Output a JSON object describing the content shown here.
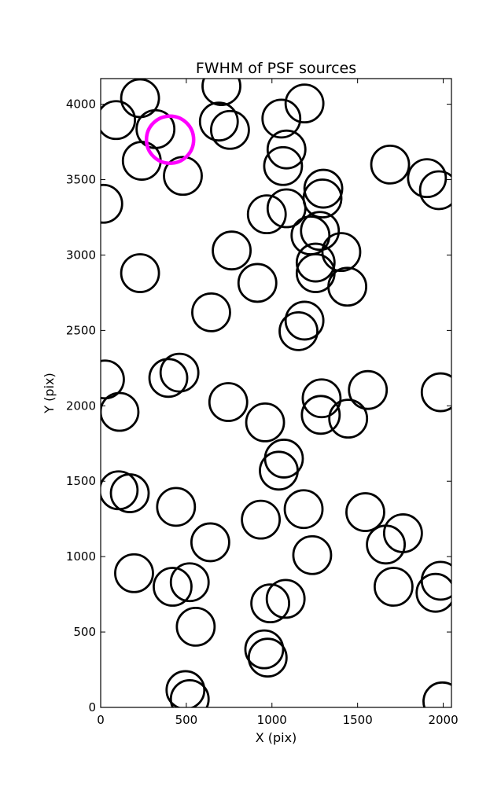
{
  "chart_data": {
    "type": "scatter",
    "title": "FWHM of PSF sources",
    "xlabel": "X (pix)",
    "ylabel": "Y (pix)",
    "xlim": [
      0,
      2048
    ],
    "ylim": [
      0,
      4170
    ],
    "xticks": [
      0,
      500,
      1000,
      1500,
      2000
    ],
    "yticks": [
      0,
      500,
      1000,
      1500,
      2000,
      2500,
      3000,
      3500,
      4000
    ],
    "grid": false,
    "legend": "none",
    "marker": "open circle",
    "marker_color": "#000000",
    "highlight_color": "#ff00ff",
    "highlight": {
      "x": 405,
      "y": 3765
    },
    "points": [
      {
        "x": 230,
        "y": 4040
      },
      {
        "x": 90,
        "y": 3895
      },
      {
        "x": 320,
        "y": 3835
      },
      {
        "x": 240,
        "y": 3625
      },
      {
        "x": 480,
        "y": 3525
      },
      {
        "x": 15,
        "y": 3340
      },
      {
        "x": 705,
        "y": 4120
      },
      {
        "x": 690,
        "y": 3885
      },
      {
        "x": 755,
        "y": 3830
      },
      {
        "x": 1055,
        "y": 3905
      },
      {
        "x": 1190,
        "y": 4005
      },
      {
        "x": 1085,
        "y": 3700
      },
      {
        "x": 1065,
        "y": 3590
      },
      {
        "x": 1300,
        "y": 3440
      },
      {
        "x": 1295,
        "y": 3375
      },
      {
        "x": 1690,
        "y": 3600
      },
      {
        "x": 1905,
        "y": 3510
      },
      {
        "x": 1975,
        "y": 3430
      },
      {
        "x": 970,
        "y": 3270
      },
      {
        "x": 1085,
        "y": 3310
      },
      {
        "x": 1225,
        "y": 3130
      },
      {
        "x": 1280,
        "y": 3160
      },
      {
        "x": 1255,
        "y": 2950
      },
      {
        "x": 1255,
        "y": 2880
      },
      {
        "x": 1405,
        "y": 3020
      },
      {
        "x": 1440,
        "y": 2790
      },
      {
        "x": 765,
        "y": 3030
      },
      {
        "x": 230,
        "y": 2880
      },
      {
        "x": 915,
        "y": 2815
      },
      {
        "x": 645,
        "y": 2620
      },
      {
        "x": 1190,
        "y": 2565
      },
      {
        "x": 1155,
        "y": 2495
      },
      {
        "x": 25,
        "y": 2175
      },
      {
        "x": 395,
        "y": 2185
      },
      {
        "x": 460,
        "y": 2220
      },
      {
        "x": 110,
        "y": 1960
      },
      {
        "x": 745,
        "y": 2025
      },
      {
        "x": 960,
        "y": 1890
      },
      {
        "x": 1290,
        "y": 2050
      },
      {
        "x": 1285,
        "y": 1940
      },
      {
        "x": 1445,
        "y": 1915
      },
      {
        "x": 1560,
        "y": 2105
      },
      {
        "x": 1985,
        "y": 2090
      },
      {
        "x": 1070,
        "y": 1650
      },
      {
        "x": 1040,
        "y": 1570
      },
      {
        "x": 105,
        "y": 1440
      },
      {
        "x": 170,
        "y": 1420
      },
      {
        "x": 440,
        "y": 1330
      },
      {
        "x": 640,
        "y": 1095
      },
      {
        "x": 935,
        "y": 1245
      },
      {
        "x": 1185,
        "y": 1315
      },
      {
        "x": 1545,
        "y": 1295
      },
      {
        "x": 1665,
        "y": 1080
      },
      {
        "x": 1765,
        "y": 1155
      },
      {
        "x": 1235,
        "y": 1010
      },
      {
        "x": 195,
        "y": 890
      },
      {
        "x": 420,
        "y": 800
      },
      {
        "x": 520,
        "y": 830
      },
      {
        "x": 555,
        "y": 535
      },
      {
        "x": 990,
        "y": 690
      },
      {
        "x": 1080,
        "y": 720
      },
      {
        "x": 1710,
        "y": 800
      },
      {
        "x": 1955,
        "y": 760
      },
      {
        "x": 1985,
        "y": 840
      },
      {
        "x": 955,
        "y": 385
      },
      {
        "x": 975,
        "y": 330
      },
      {
        "x": 495,
        "y": 115
      },
      {
        "x": 520,
        "y": 55
      },
      {
        "x": 1995,
        "y": 40
      }
    ]
  }
}
